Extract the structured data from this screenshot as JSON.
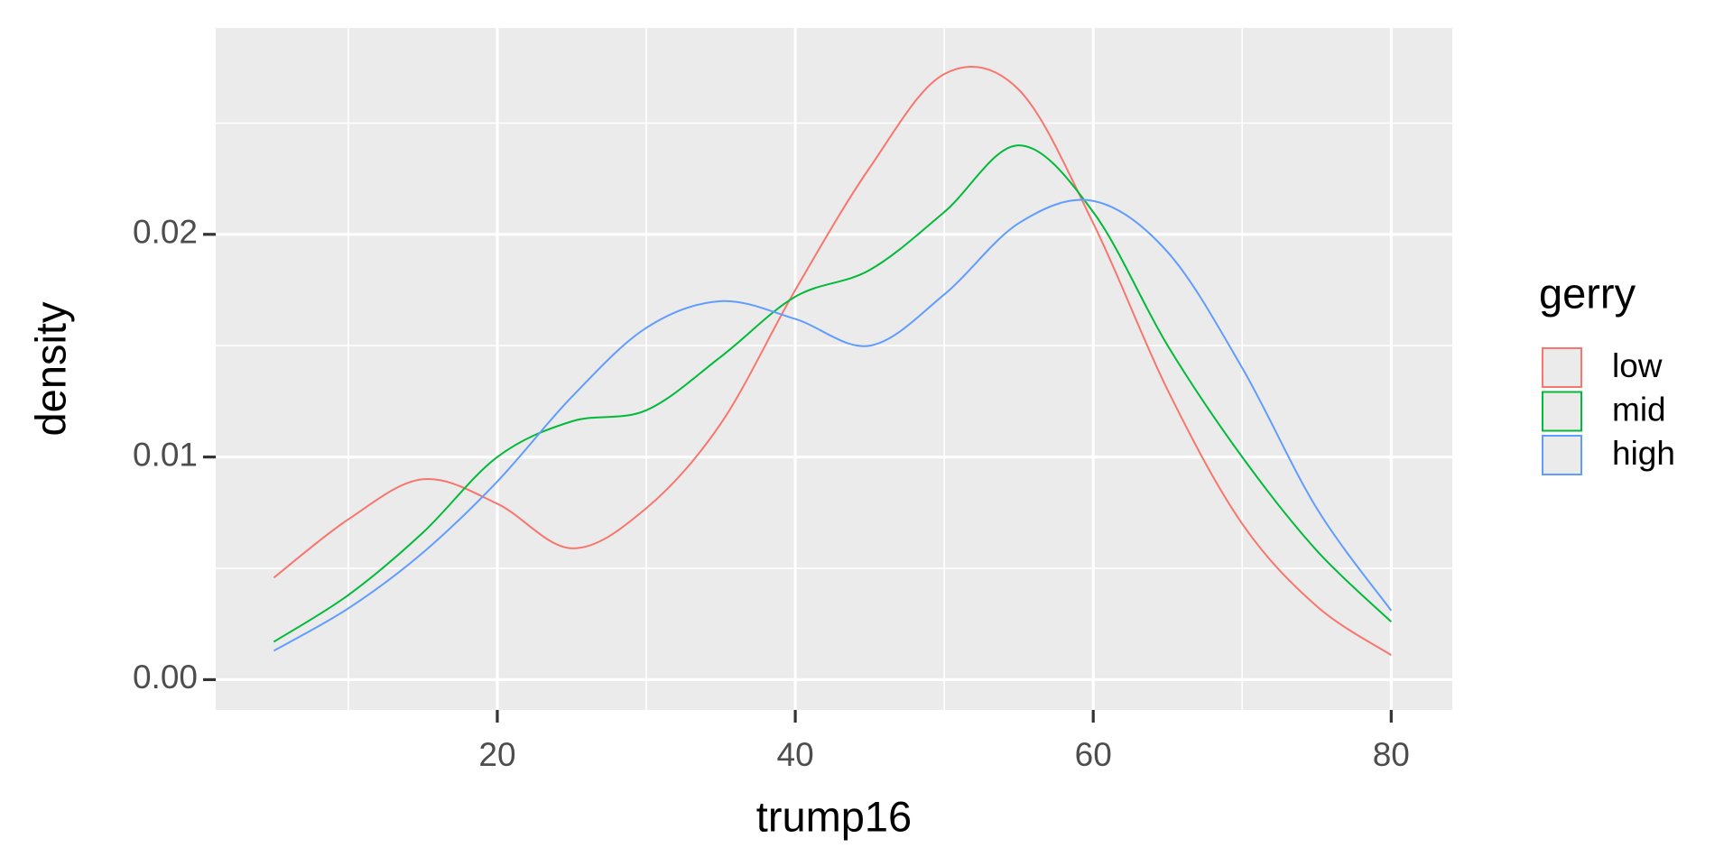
{
  "chart_data": {
    "type": "density",
    "x_label": "trump16",
    "y_label": "density",
    "legend_title": "gerry",
    "legend_position": "right",
    "grid": true,
    "x": [
      5,
      10,
      15,
      20,
      25,
      30,
      35,
      40,
      45,
      50,
      55,
      60,
      65,
      70,
      75,
      80
    ],
    "series": [
      {
        "name": "low",
        "color": "#f8766d",
        "values": [
          0.00458,
          0.0072,
          0.009,
          0.0079,
          0.0059,
          0.0077,
          0.0115,
          0.0175,
          0.023,
          0.0272,
          0.0265,
          0.0205,
          0.013,
          0.007,
          0.0033,
          0.0011
        ]
      },
      {
        "name": "mid",
        "color": "#00ba38",
        "values": [
          0.0017,
          0.0038,
          0.0066,
          0.01,
          0.0116,
          0.0121,
          0.0145,
          0.0172,
          0.0184,
          0.021,
          0.024,
          0.021,
          0.015,
          0.01,
          0.0058,
          0.0026
        ]
      },
      {
        "name": "high",
        "color": "#619cff",
        "values": [
          0.0013,
          0.0032,
          0.0057,
          0.0089,
          0.0127,
          0.0158,
          0.017,
          0.0162,
          0.015,
          0.0173,
          0.0205,
          0.0215,
          0.0192,
          0.014,
          0.0077,
          0.0031
        ]
      }
    ],
    "xlim": [
      1.1,
      84.1
    ],
    "ylim": [
      -0.00136,
      0.02927
    ],
    "xticks": [
      20,
      40,
      60,
      80
    ],
    "yticks": [
      {
        "value": 0,
        "label": "0.00"
      },
      0.01,
      0.02
    ]
  }
}
